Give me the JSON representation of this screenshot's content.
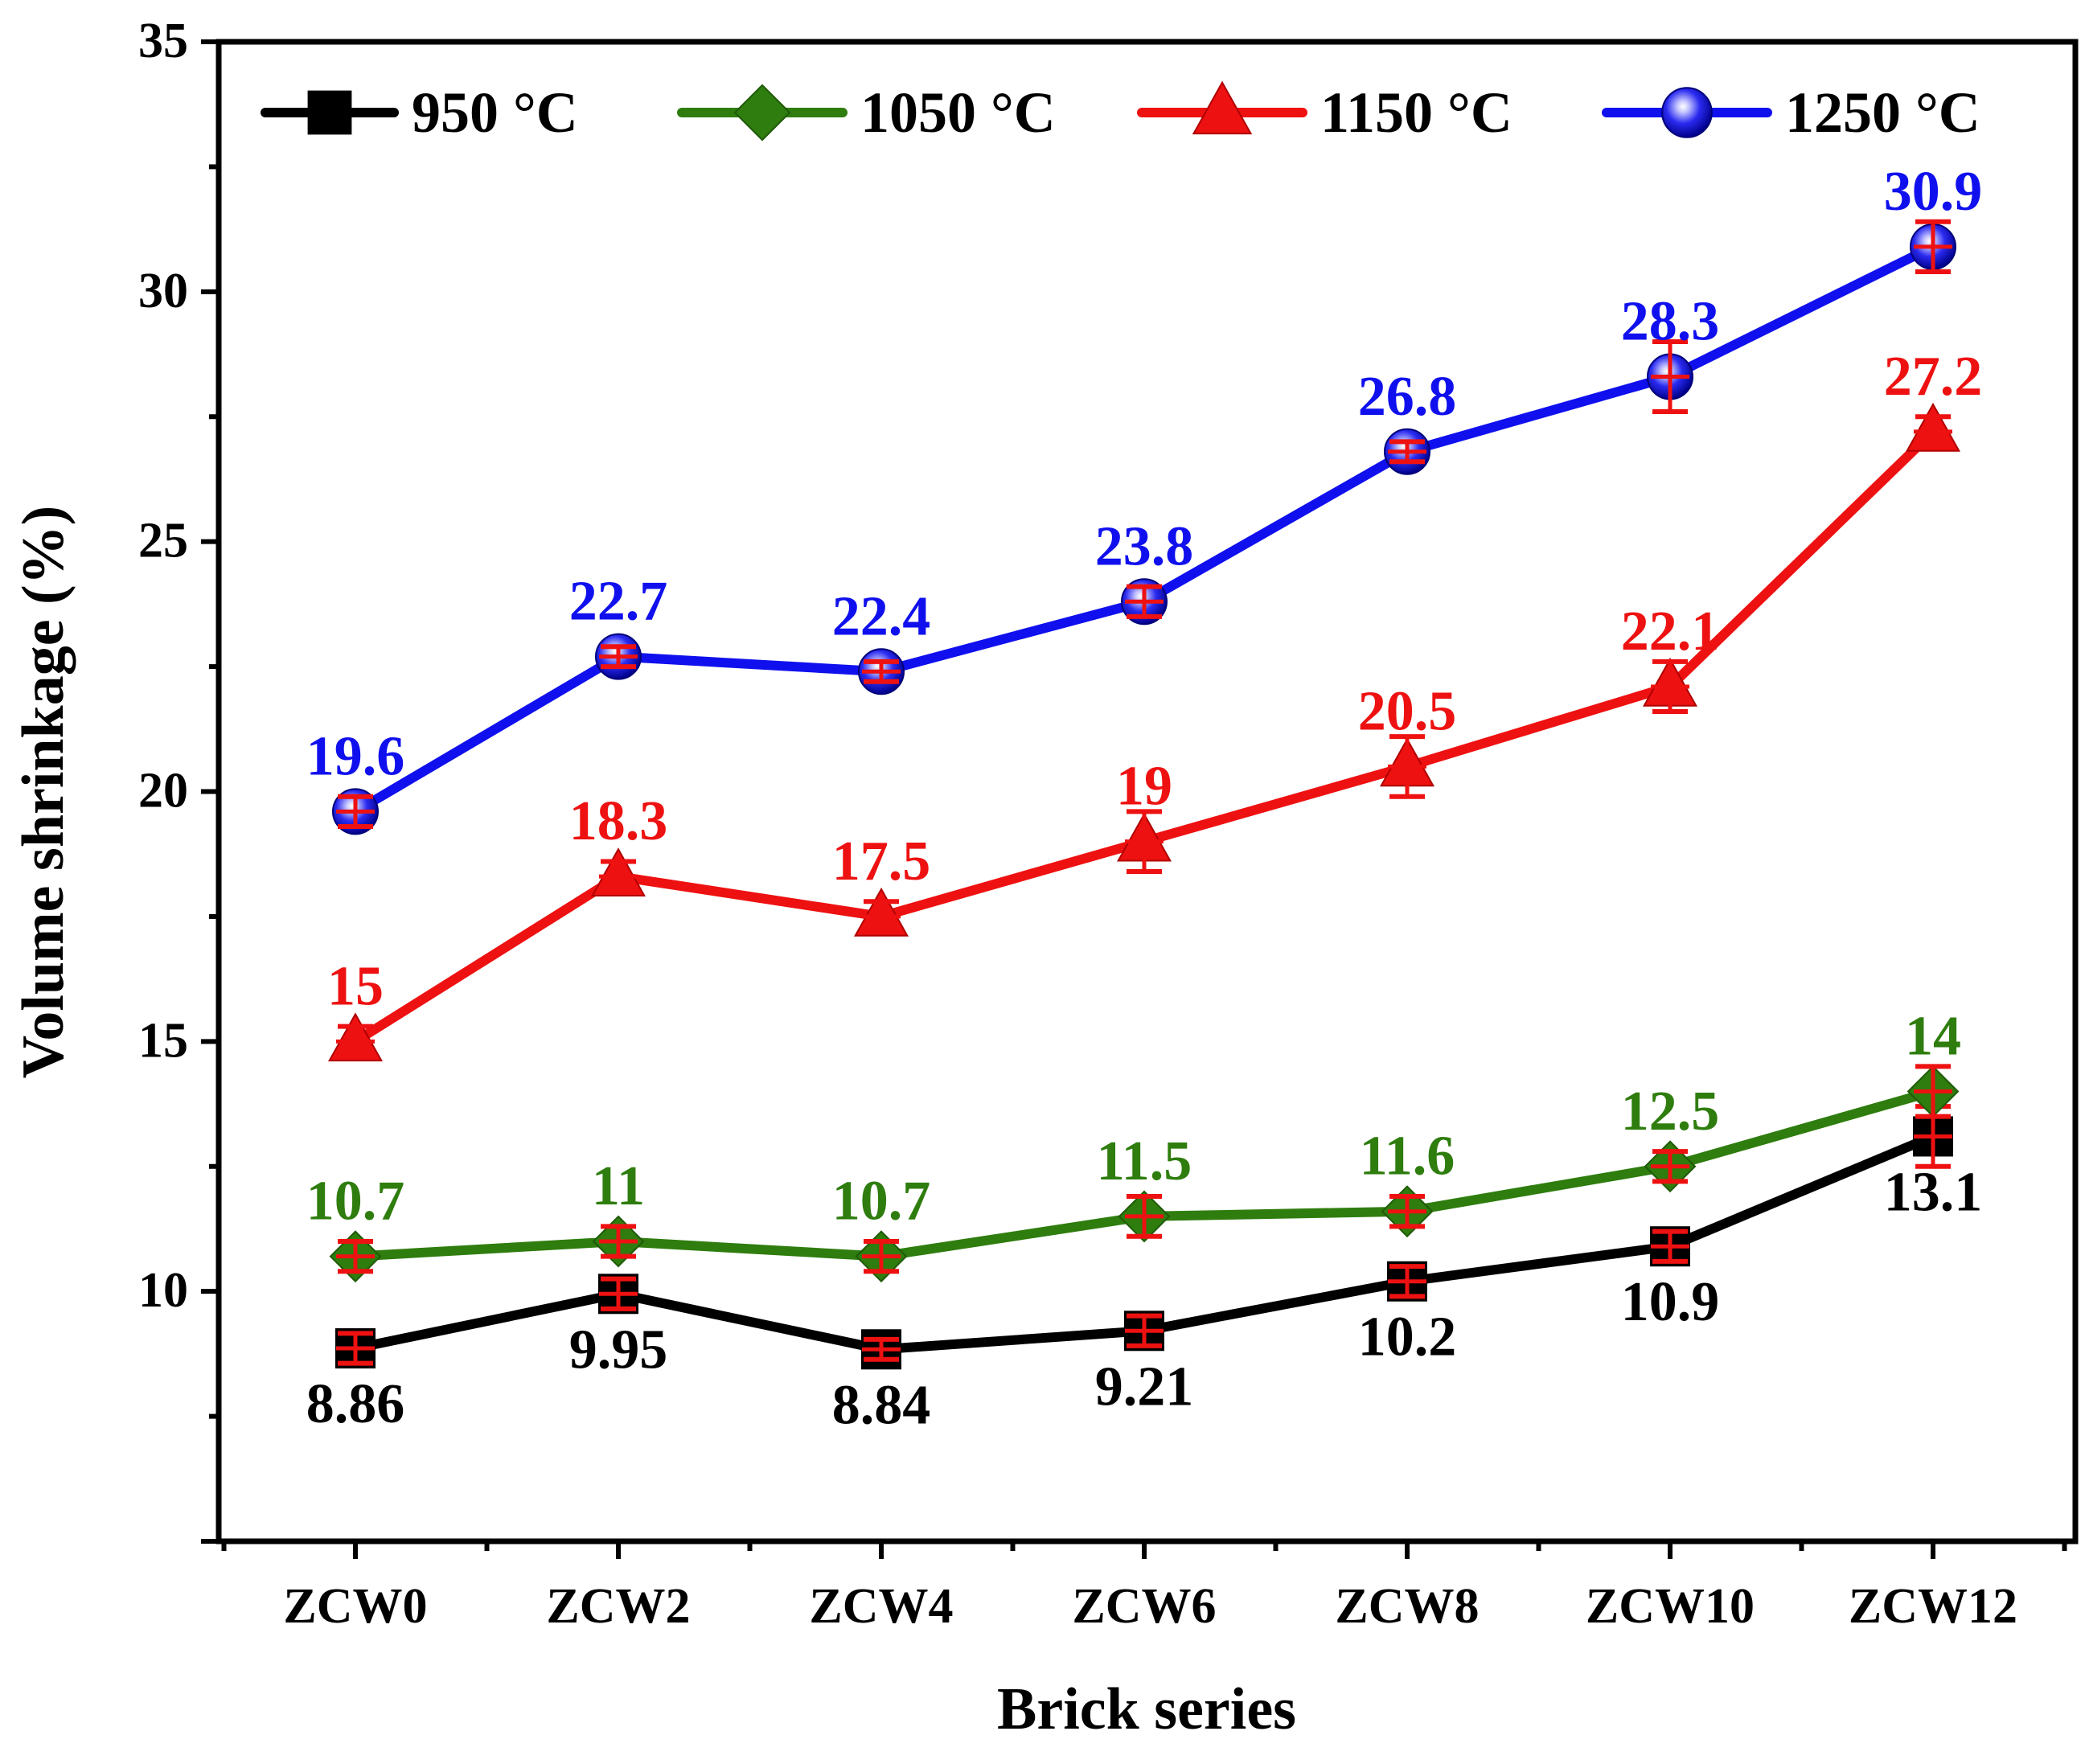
{
  "chart_data": {
    "type": "line",
    "title": "",
    "xlabel": "Brick series",
    "ylabel": "Volume shrinkage (%)",
    "ylim": [
      5,
      35
    ],
    "yticks": [
      10,
      15,
      20,
      25,
      30,
      35
    ],
    "ytick_labels": [
      "10",
      "15",
      "20",
      "25",
      "30",
      "35"
    ],
    "categories": [
      "ZCW0",
      "ZCW2",
      "ZCW4",
      "ZCW6",
      "ZCW8",
      "ZCW10",
      "ZCW12"
    ],
    "legend_position": "top",
    "series": [
      {
        "name": "950 °C",
        "color": "#000000",
        "marker": "square",
        "values": [
          8.86,
          9.95,
          8.84,
          9.21,
          10.2,
          10.9,
          13.1
        ],
        "labels": [
          "8.86",
          "9.95",
          "8.84",
          "9.21",
          "10.2",
          "10.9",
          "13.1"
        ],
        "errors": [
          0.3,
          0.3,
          0.2,
          0.3,
          0.3,
          0.3,
          0.6
        ],
        "label_position": "below"
      },
      {
        "name": "1050 °C",
        "color": "#2e7d0e",
        "marker": "diamond",
        "values": [
          10.7,
          11.0,
          10.7,
          11.5,
          11.6,
          12.5,
          14.0
        ],
        "labels": [
          "10.7",
          "11",
          "10.7",
          "11.5",
          "11.6",
          "12.5",
          "14"
        ],
        "errors": [
          0.3,
          0.3,
          0.3,
          0.4,
          0.3,
          0.3,
          0.5
        ],
        "label_position": "above"
      },
      {
        "name": "1150 °C",
        "color": "#ee1111",
        "marker": "triangle",
        "values": [
          15.0,
          18.3,
          17.5,
          19.0,
          20.5,
          22.1,
          27.2
        ],
        "labels": [
          "15",
          "18.3",
          "17.5",
          "19",
          "20.5",
          "22.1",
          "27.2"
        ],
        "errors": [
          0.3,
          0.3,
          0.3,
          0.6,
          0.6,
          0.5,
          0.3
        ],
        "label_position": "above"
      },
      {
        "name": "1250 °C",
        "color": "#1010ee",
        "marker": "sphere",
        "values": [
          19.6,
          22.7,
          22.4,
          23.8,
          26.8,
          28.3,
          30.9
        ],
        "labels": [
          "19.6",
          "22.7",
          "22.4",
          "23.8",
          "26.8",
          "28.3",
          "30.9"
        ],
        "errors": [
          0.3,
          0.2,
          0.2,
          0.3,
          0.2,
          0.7,
          0.5
        ],
        "label_position": "above"
      }
    ]
  }
}
